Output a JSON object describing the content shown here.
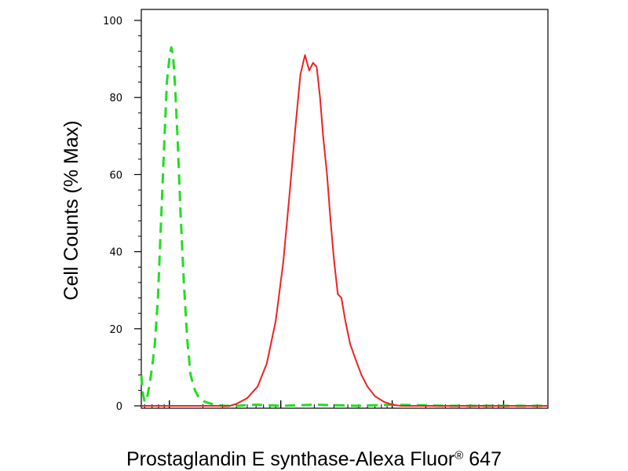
{
  "chart_data": {
    "type": "line",
    "title": "",
    "xlabel": "Prostaglandin E synthase-Alexa Fluor",
    "xlabel_superscript": "®",
    "xlabel_suffix": " 647",
    "ylabel": "Cell Counts (% Max)",
    "x_scale": "log",
    "xlim": [
      0.56,
      2500
    ],
    "ylim": [
      0,
      100
    ],
    "y_ticks": [
      0,
      20,
      40,
      60,
      80,
      100
    ],
    "y_tick_labels": [
      "0",
      "20",
      "40",
      "60",
      "80",
      "100"
    ],
    "x_tick_labels_shown": false,
    "grid": false,
    "legend": false,
    "series": [
      {
        "color": "#22dd22",
        "style": "dashed",
        "x": [
          0.56,
          0.58,
          0.6,
          0.63,
          0.66,
          0.7,
          0.74,
          0.79,
          0.84,
          0.9,
          0.95,
          1.0,
          1.04,
          1.08,
          1.13,
          1.19,
          1.26,
          1.35,
          1.45,
          1.55,
          1.7,
          1.85,
          2.1,
          2.4,
          3.0,
          4.0,
          6.0,
          10.0,
          20.0,
          50.0,
          100.0,
          300.0,
          1000.0,
          2500.0
        ],
        "y": [
          8,
          3,
          1,
          2,
          5,
          10,
          16,
          28,
          47,
          68,
          84,
          90,
          93,
          91,
          82,
          68,
          50,
          32,
          17,
          8,
          4,
          2,
          1,
          0.5,
          0,
          0,
          0.3,
          0,
          0.3,
          0,
          0.3,
          0,
          0,
          0
        ]
      },
      {
        "color": "#ee2222",
        "style": "solid",
        "x": [
          0.56,
          1.0,
          3.5,
          4.0,
          5.0,
          6.2,
          7.5,
          9.0,
          10.5,
          12.0,
          13.5,
          15.0,
          16.5,
          18.0,
          19.5,
          21.0,
          22.5,
          24.0,
          26.0,
          28.0,
          30.0,
          32.5,
          35.0,
          38.0,
          42.0,
          47.0,
          53.0,
          60.0,
          70.0,
          85.0,
          100.0,
          120.0,
          150.0,
          200.0,
          300.0,
          500.0,
          1000.0,
          2500.0
        ],
        "y": [
          0,
          0,
          0,
          0.5,
          2,
          5,
          11,
          22,
          37,
          55,
          72,
          86,
          91,
          87,
          89,
          88,
          80,
          70,
          60,
          48,
          38,
          29,
          28,
          22,
          16,
          12,
          8,
          5,
          2.5,
          1,
          0.3,
          0,
          0,
          0,
          0,
          0,
          0,
          0
        ]
      }
    ]
  }
}
